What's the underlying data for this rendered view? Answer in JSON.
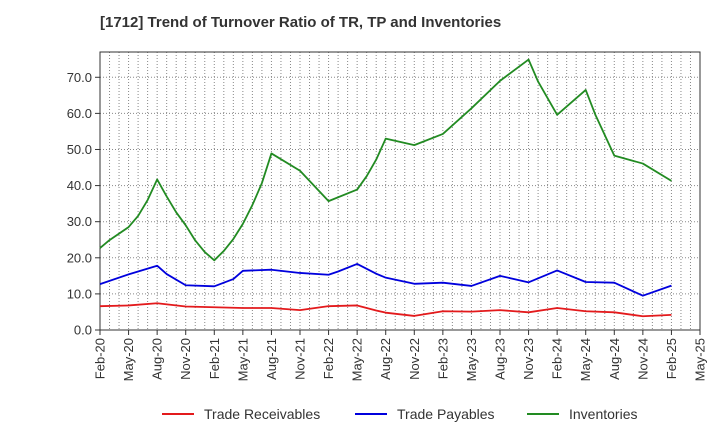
{
  "chart_data": {
    "type": "line",
    "title": "[1712]  Trend of Turnover Ratio of TR, TP and Inventories",
    "xlabel": "",
    "ylabel": "",
    "ylim": [
      0,
      77
    ],
    "grid": true,
    "legend_placement": "bottom",
    "y_ticks": [
      "0.0",
      "10.0",
      "20.0",
      "30.0",
      "40.0",
      "50.0",
      "60.0",
      "70.0"
    ],
    "x_ticks": [
      "Feb-20",
      "May-20",
      "Aug-20",
      "Nov-20",
      "Feb-21",
      "May-21",
      "Aug-21",
      "Nov-21",
      "Feb-22",
      "May-22",
      "Aug-22",
      "Nov-22",
      "Feb-23",
      "May-23",
      "Aug-23",
      "Nov-23",
      "Feb-24",
      "May-24",
      "Aug-24",
      "Nov-24",
      "Feb-25",
      "May-25"
    ],
    "series": [
      {
        "name": "Trade Receivables",
        "color": "#e31a1c",
        "points": [
          [
            "Feb-20",
            6.6
          ],
          [
            "May-20",
            6.8
          ],
          [
            "Aug-20",
            7.4
          ],
          [
            "Nov-20",
            6.5
          ],
          [
            "Feb-21",
            6.3
          ],
          [
            "May-21",
            6.1
          ],
          [
            "Aug-21",
            6.1
          ],
          [
            "Nov-21",
            5.5
          ],
          [
            "Feb-22",
            6.6
          ],
          [
            "May-22",
            6.8
          ],
          [
            "Jul-22",
            5.4
          ],
          [
            "Aug-22",
            4.8
          ],
          [
            "Nov-22",
            3.9
          ],
          [
            "Feb-23",
            5.2
          ],
          [
            "May-23",
            5.1
          ],
          [
            "Aug-23",
            5.5
          ],
          [
            "Nov-23",
            4.9
          ],
          [
            "Feb-24",
            6.1
          ],
          [
            "May-24",
            5.2
          ],
          [
            "Aug-24",
            4.9
          ],
          [
            "Nov-24",
            3.8
          ],
          [
            "Feb-25",
            4.2
          ]
        ]
      },
      {
        "name": "Trade Payables",
        "color": "#0000dd",
        "points": [
          [
            "Feb-20",
            12.7
          ],
          [
            "May-20",
            15.4
          ],
          [
            "Aug-20",
            17.8
          ],
          [
            "Sep-20",
            15.5
          ],
          [
            "Nov-20",
            12.4
          ],
          [
            "Feb-21",
            12.1
          ],
          [
            "Apr-21",
            14.1
          ],
          [
            "May-21",
            16.4
          ],
          [
            "Aug-21",
            16.7
          ],
          [
            "Nov-21",
            15.8
          ],
          [
            "Feb-22",
            15.3
          ],
          [
            "Mar-22",
            16.2
          ],
          [
            "May-22",
            18.3
          ],
          [
            "Jul-22",
            15.6
          ],
          [
            "Aug-22",
            14.5
          ],
          [
            "Nov-22",
            12.8
          ],
          [
            "Feb-23",
            13.1
          ],
          [
            "May-23",
            12.2
          ],
          [
            "Aug-23",
            15.0
          ],
          [
            "Nov-23",
            13.2
          ],
          [
            "Feb-24",
            16.5
          ],
          [
            "May-24",
            13.3
          ],
          [
            "Aug-24",
            13.1
          ],
          [
            "Nov-24",
            9.5
          ],
          [
            "Feb-25",
            12.3
          ]
        ]
      },
      {
        "name": "Inventories",
        "color": "#228b22",
        "points": [
          [
            "Feb-20",
            22.7
          ],
          [
            "Mar-20",
            24.9
          ],
          [
            "May-20",
            28.5
          ],
          [
            "Jun-20",
            31.6
          ],
          [
            "Jul-20",
            36.0
          ],
          [
            "Aug-20",
            41.7
          ],
          [
            "Sep-20",
            37.0
          ],
          [
            "Oct-20",
            32.6
          ],
          [
            "Nov-20",
            29.0
          ],
          [
            "Dec-20",
            24.8
          ],
          [
            "Jan-21",
            21.6
          ],
          [
            "Feb-21",
            19.3
          ],
          [
            "Mar-21",
            21.9
          ],
          [
            "Apr-21",
            25.2
          ],
          [
            "May-21",
            29.4
          ],
          [
            "Jun-21",
            34.6
          ],
          [
            "Jul-21",
            40.7
          ],
          [
            "Aug-21",
            48.9
          ],
          [
            "Nov-21",
            44.1
          ],
          [
            "Jan-22",
            38.5
          ],
          [
            "Feb-22",
            35.7
          ],
          [
            "May-22",
            38.9
          ],
          [
            "Jun-22",
            42.6
          ],
          [
            "Jul-22",
            47.2
          ],
          [
            "Aug-22",
            53.0
          ],
          [
            "Nov-22",
            51.2
          ],
          [
            "Feb-23",
            54.3
          ],
          [
            "May-23",
            61.4
          ],
          [
            "Aug-23",
            69.0
          ],
          [
            "Nov-23",
            74.9
          ],
          [
            "Dec-23",
            68.8
          ],
          [
            "Feb-24",
            59.6
          ],
          [
            "May-24",
            66.5
          ],
          [
            "Jun-24",
            59.7
          ],
          [
            "Aug-24",
            48.3
          ],
          [
            "Nov-24",
            46.1
          ],
          [
            "Feb-25",
            41.3
          ]
        ]
      }
    ]
  }
}
